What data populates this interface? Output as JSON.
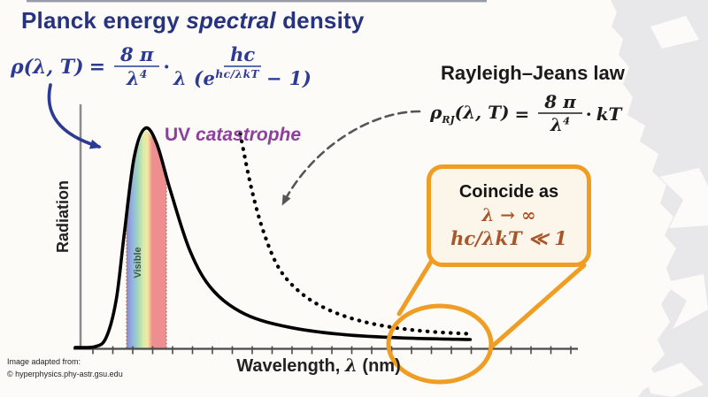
{
  "slide": {
    "title": {
      "pre": "Planck energy ",
      "italic": "spectral",
      "post": " density"
    },
    "planck_formula": {
      "lhs": "ρ(λ, T)",
      "eq": "=",
      "f1_num": "8 π",
      "f1_den_base": "λ",
      "f1_den_sup": "4",
      "dot": "·",
      "f2_num": "hc",
      "f2_den_pre": "λ (e",
      "f2_den_sup": "hc/λkT",
      "f2_den_post": " − 1)"
    },
    "rj_heading": "Rayleigh–Jeans law",
    "rj_formula": {
      "lhs_base": "ρ",
      "lhs_sub": "RJ",
      "lhs_rest": "(λ, T)",
      "eq": "=",
      "f_num": "8 π",
      "f_den_base": "λ",
      "f_den_sup": "4",
      "dot": "·",
      "rhs": "kT"
    },
    "uv_label": {
      "pre": "UV ",
      "italic": "catastrophe"
    },
    "callout": {
      "line1": "Coincide as",
      "line2": "λ → ∞",
      "line3": "hc/λkT ≪ 1"
    },
    "attribution": {
      "line1": "Image adapted from:",
      "line2": "© hyperphysics.phy-astr.gsu.edu"
    }
  },
  "chart_data": {
    "type": "line",
    "title": "",
    "xlabel_parts": {
      "pre": "Wavelength, ",
      "italic": "λ",
      "post": " (nm)"
    },
    "xlabel": "Wavelength, λ (nm)",
    "ylabel": "Radiation",
    "axes_numeric_labels": false,
    "units": "arbitrary (normalized 0–1, read from unlabeled axes)",
    "x_tick_count": 25,
    "grid": false,
    "series": [
      {
        "name": "Planck energy spectral density",
        "style": "solid",
        "color": "#000000",
        "points": [
          [
            0.0,
            0.004
          ],
          [
            0.04,
            0.008
          ],
          [
            0.062,
            0.05
          ],
          [
            0.082,
            0.22
          ],
          [
            0.098,
            0.52
          ],
          [
            0.118,
            0.87
          ],
          [
            0.14,
            1.0
          ],
          [
            0.163,
            0.93
          ],
          [
            0.19,
            0.72
          ],
          [
            0.23,
            0.44
          ],
          [
            0.275,
            0.265
          ],
          [
            0.34,
            0.155
          ],
          [
            0.43,
            0.095
          ],
          [
            0.54,
            0.062
          ],
          [
            0.66,
            0.047
          ],
          [
            0.79,
            0.04
          ]
        ]
      },
      {
        "name": "Rayleigh–Jeans law",
        "style": "dotted",
        "color": "#000000",
        "points": [
          [
            0.33,
            0.975
          ],
          [
            0.352,
            0.73
          ],
          [
            0.378,
            0.52
          ],
          [
            0.41,
            0.355
          ],
          [
            0.455,
            0.245
          ],
          [
            0.51,
            0.172
          ],
          [
            0.575,
            0.122
          ],
          [
            0.645,
            0.092
          ],
          [
            0.715,
            0.075
          ],
          [
            0.79,
            0.066
          ]
        ]
      }
    ],
    "visible_band": {
      "label": "Visible",
      "t_start": 0.1027,
      "t_end": 0.1823,
      "colors": [
        "#9187c9",
        "#8fb6e2",
        "#a5d9b5",
        "#dcedaa",
        "#f5e79e",
        "#ef8e8e"
      ]
    },
    "annotations": [
      "UV catastrophe (purple label, points at Rayleigh–Jeans divergence)",
      "Orange ellipse circles the long-wavelength tail where both curves coincide",
      "Callout: Coincide as λ → ∞, hc/λkT ≪ 1"
    ]
  },
  "colors": {
    "title_navy": "#27337e",
    "formula_navy": "#2c3a94",
    "uv_purple": "#8e3f9d",
    "annotation_orange": "#f09d23",
    "callout_brown": "#a9562b",
    "callout_fill": "#fbf5ea",
    "torn_paper_gray": "#e8e7e9",
    "background": "#fcfbf8"
  }
}
